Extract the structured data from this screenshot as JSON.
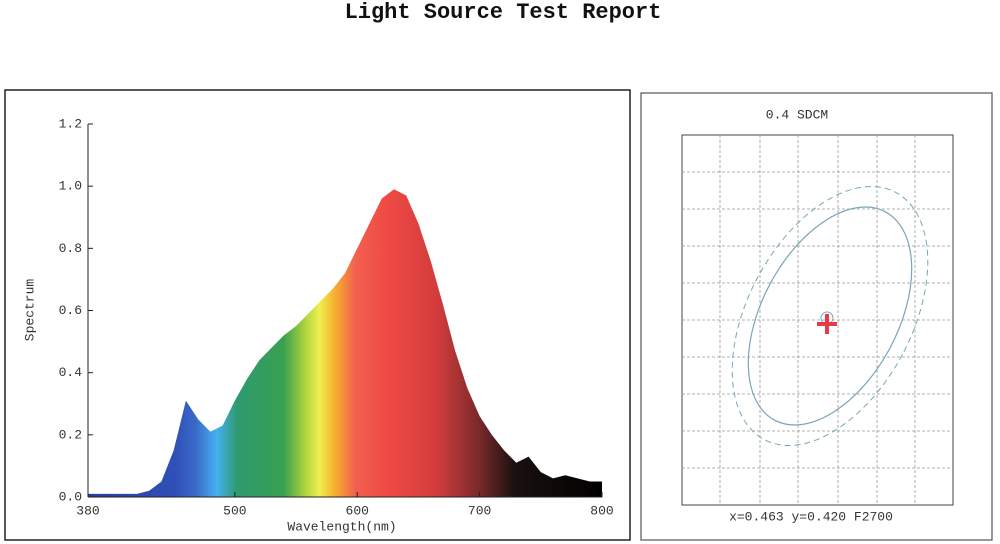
{
  "title": "Light Source Test Report",
  "chart_data": [
    {
      "type": "area",
      "x_label": "Wavelength(nm)",
      "y_label": "Spectrum",
      "x": [
        380,
        390,
        400,
        410,
        420,
        430,
        440,
        450,
        460,
        470,
        480,
        490,
        500,
        510,
        520,
        530,
        540,
        550,
        560,
        570,
        580,
        590,
        600,
        610,
        620,
        630,
        640,
        650,
        660,
        670,
        680,
        690,
        700,
        710,
        720,
        730,
        740,
        750,
        760,
        770,
        780,
        790,
        800
      ],
      "values": [
        0.01,
        0.01,
        0.01,
        0.01,
        0.01,
        0.02,
        0.05,
        0.15,
        0.31,
        0.25,
        0.21,
        0.23,
        0.31,
        0.38,
        0.44,
        0.48,
        0.52,
        0.55,
        0.59,
        0.63,
        0.67,
        0.72,
        0.8,
        0.88,
        0.96,
        0.99,
        0.97,
        0.88,
        0.76,
        0.62,
        0.47,
        0.35,
        0.26,
        0.2,
        0.15,
        0.11,
        0.13,
        0.08,
        0.06,
        0.07,
        0.06,
        0.05,
        0.05
      ],
      "xlim": [
        380,
        800
      ],
      "xticks": [
        380,
        500,
        600,
        700,
        800
      ],
      "ylim": [
        0,
        1.2
      ],
      "yticks": [
        {
          "value": 0,
          "label": "0.0"
        },
        0.2,
        0.4,
        0.6,
        0.8,
        {
          "value": 1,
          "label": "1.0"
        },
        1.2
      ]
    },
    {
      "type": "chromaticity",
      "title": "0.4 SDCM",
      "caption": "x=0.463 y=0.420 F2700"
    }
  ]
}
